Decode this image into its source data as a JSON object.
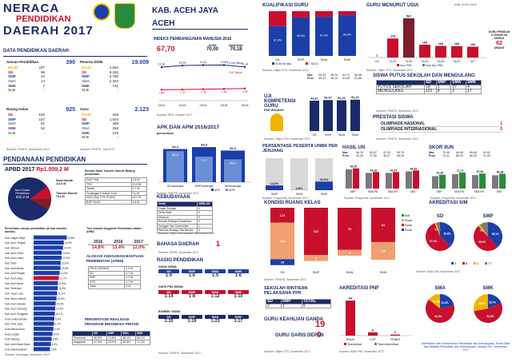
{
  "header": {
    "l1": "NERACA",
    "l2": "PENDIDIKAN",
    "l3": "DAERAH 2017",
    "region": "KAB. ACEH JAYA",
    "province": "ACEH"
  },
  "data": {
    "title": "DATA PENDIDIKAN DAERAH",
    "sp_label": "Satuan Pendidikan",
    "sp_total": "390",
    "sp_rows": [
      [
        "PAUD",
        "237"
      ],
      [
        "SD",
        "98"
      ],
      [
        "SMP",
        "34"
      ],
      [
        "SMA",
        "14"
      ],
      [
        "SMK",
        "7"
      ],
      [
        "SLB",
        "-"
      ]
    ],
    "pd_label": "Peserta Didik",
    "pd_total": "19.009",
    "pd_rows": [
      [
        "PAUD",
        "2.654"
      ],
      [
        "SD",
        "9.302"
      ],
      [
        "SMP",
        "2.786"
      ],
      [
        "SMA",
        "2.333"
      ],
      [
        "SMK",
        "731"
      ],
      [
        "SLB",
        "-"
      ]
    ],
    "rk_label": "Ruang Kelas",
    "rk_total": "925",
    "rk_rows": [
      [
        "SD",
        "615"
      ],
      [
        "SMP",
        "167"
      ],
      [
        "SMA",
        "91"
      ],
      [
        "SMK",
        "52"
      ],
      [
        "SLB",
        "-"
      ]
    ],
    "g_label": "Guru",
    "g_total": "2.123",
    "g_rows": [
      [
        "PAUD",
        "268"
      ],
      [
        "SD",
        "1.004"
      ],
      [
        "SMP",
        "459"
      ],
      [
        "SMA",
        "268"
      ],
      [
        "SMK",
        "125"
      ],
      [
        "SLB",
        "-"
      ]
    ],
    "src": "Sumber: PDSPK, Novermber 2017",
    "src2": "Sumber: PDSPK, Juni 2017"
  },
  "pendanaan": {
    "title": "PENDANAAN PENDIDIKAN",
    "apbd": "APBD 2017",
    "apbd_val": "Rp1.009,2 M",
    "pie_lbl1": "Non Urusan Pendidikan",
    "pie_val1": "822,2 M",
    "pie_lbl2": "Dana Daerah",
    "pie_val2": "111,6 M",
    "pie_lbl3": "Transfer Daerah",
    "pie_val3": "75,3 M",
    "rincian": "Rincian Dana Transfer Daerah Bidang pendidikan",
    "rincian_rows": [
      [
        "DAK Fisik",
        "4,8 M"
      ],
      [
        "TPG",
        "21,8 M"
      ],
      [
        "Tamsil",
        "1,7 M"
      ],
      [
        "Tunjangan Khusus Guru",
        "0,0 M"
      ],
      [
        "DAU (Gaji GTK PNSD)",
        "40,2 M"
      ],
      [
        "BOP PAUD",
        "3,8 M"
      ]
    ],
    "persentase_label": "Persentase urusan pendidikan (di luar transfer daerah)",
    "tren": "Tren Alokasi Anggaran Pendidikan dalam APBD",
    "tren_years": [
      "2016",
      "2016",
      "2017"
    ],
    "tren_vals": [
      "14,8%",
      "13,4%",
      "12,0%"
    ],
    "alokasi": "ALOKASI ANGGARAN BANTUAN PEMERINTAH (APBN)",
    "alokasi_rows": [
      [
        "PAUD-DIKMAS",
        "0,3 M"
      ],
      [
        "SD",
        "2,7 M"
      ],
      [
        "SMP",
        "0,3 M"
      ],
      [
        "GTK",
        "1,7 M"
      ],
      [
        "Total",
        "5 M"
      ]
    ],
    "realisasi": "PERSENTASE REALISASI PROGRAM INDONESIA PINTAR",
    "real_head": [
      "",
      "SD",
      "SMP",
      "SMA",
      "SMK"
    ],
    "real_rows": [
      [
        "Penerima",
        "46,9%",
        "21,8%",
        "48,1%",
        "64,1%"
      ],
      [
        "Anggaran",
        "47,3%",
        "23,9%",
        "49,5%",
        "71,4%"
      ]
    ],
    "kab_list": [
      "Kab. Nagan Raya",
      "Kab. Aceh Tengah",
      "Kab. Bireuen",
      "Kab. Aceh Timur",
      "Kab. Aceh Utara",
      "Kab. Pidie",
      "Kab. Aceh Besar",
      "Kab. Aceh Singkil",
      "Kab. Aceh Jaya",
      "Kab. Aceh Barat",
      "Kab. Simeulue",
      "Kab. Gayo Lues",
      "Kab. Bener Meriah",
      "Kab. Aceh Selatan",
      "Kab. Aceh Tamiang",
      "Kab. Aceh Tenggara",
      "Kota Lhokseumawe",
      "Kab. Pidie Jaya",
      "Kota Banda Aceh",
      "Kota Langsa",
      "Kota Sabang",
      "Kab. Aceh Barat Daya",
      "Kota Subulussalam"
    ],
    "kab_vals": [
      "15,8%",
      "14,4%",
      "14,0%",
      "13,4%",
      "13,3%",
      "12,9%",
      "12,8%",
      "12,4%",
      "12,0%",
      "11,6%",
      "11,5%",
      "11,2%",
      "10,9%",
      "10,5%",
      "10,3%",
      "10,1%",
      "9,9%",
      "9,7%",
      "9,4%",
      "9,0%",
      "8,6%",
      "8,2%",
      "7,8%"
    ],
    "kab_pct": [
      15.8,
      14.4,
      14.0,
      13.4,
      13.3,
      12.9,
      12.8,
      12.4,
      12.0,
      11.6,
      11.5,
      11.2,
      10.9,
      10.5,
      10.3,
      10.1,
      9.9,
      9.7,
      9.4,
      9.0,
      8.6,
      8.2,
      7.8
    ],
    "src": "Sumber: Kemdagri, November 2017"
  },
  "ipm": {
    "title": "INDEKS PEMBANGUNAN MANUSIA 2016",
    "val": "67,70",
    "aceh": "ACEH",
    "aceh_val": "70,00",
    "nas": "NASIONAL",
    "nas_val": "70,18",
    "years": [
      "2012",
      "2013",
      "2014",
      "2015",
      "2016"
    ],
    "rls": [
      "13,30",
      "13,69",
      "13,81",
      "13,82",
      "13,34"
    ],
    "hls": [
      "7,64",
      "7,70",
      "7,78",
      "7,86",
      "7,95"
    ],
    "rls_pct": [
      13.3,
      13.69,
      13.81,
      13.82,
      13.34
    ],
    "hls_pct": [
      7.64,
      7.7,
      7.78,
      7.86,
      7.95
    ],
    "lg1": "Harapan Lama Sekolah",
    "lg2": "Rerata Lama Sekolah",
    "lg_tahun": "13,3m Tahun",
    "lg_tahun2": "7,95 Tahun",
    "src": "Sumber: BPS, Oktober 2017"
  },
  "apk": {
    "title": "APK DAN APM 2016/2017",
    "sub": "(persentase)",
    "cats": [
      "SD/sederajat",
      "SMP/sederajat",
      "SM/sederajat"
    ],
    "apk": [
      "94,4",
      "99,8",
      "90,0"
    ],
    "apm": [
      "88,4",
      "72,7",
      "65,0"
    ],
    "apk_pct": [
      94.4,
      99.8,
      90.0
    ],
    "apm_pct": [
      88.4,
      72.7,
      65.0
    ],
    "lg": [
      "APK",
      "APM"
    ],
    "src": "Sumber: PDSPK, November 2017"
  },
  "kebudayaan": {
    "title": "KEBUDAYAAN",
    "rows": [
      [
        "Jenis",
        "JUMLAH"
      ],
      [
        "Cagar Budaya",
        "3"
      ],
      [
        "Desa Adat",
        "0"
      ],
      [
        "Museum",
        "0"
      ],
      [
        "Rumah Budaya Nusantara",
        "0"
      ],
      [
        "Sanggar dan Komunitas",
        "1"
      ],
      [
        "Warisan Budaya Tak Benda",
        "4"
      ]
    ],
    "src": "Sumber: Ditjen Kebudayaan, November 2017"
  },
  "bahasa": {
    "title": "BAHASA DAERAH",
    "val": "1",
    "src": "Sumber: BPPB, November 2017"
  },
  "rasio": {
    "title": "RASIO PENDIDIKAN",
    "gs": "GURU:SISWA",
    "gs_head": [
      "SD",
      "SMP",
      "SMA",
      "SMK"
    ],
    "gs_vals": [
      "1:9",
      "1:6",
      "1:9",
      "1:6"
    ],
    "ps": "GURU PNS:SISWA",
    "ps_head": [
      "SD",
      "SMP",
      "SMA",
      "SMK"
    ],
    "ps_vals": [
      "1:14",
      "1:8",
      "1:12",
      "1:10"
    ],
    "rb": "ROMBEL:SISWA",
    "rb_head": [
      "SD",
      "SMP",
      "SMA",
      "SMK"
    ],
    "rb_vals": [
      "1:15",
      "1:19",
      "1:23",
      "1:17"
    ],
    "src": "Sumber: PDSPK, November 2017"
  },
  "kualifikasi": {
    "title": "KUALIFIKASI GURU",
    "cats": [
      "SD",
      "SMP",
      "SMA",
      "SMK"
    ],
    "s1": [
      66.6,
      85.8,
      87.4,
      90.9
    ],
    "lt": [
      33.4,
      14.2,
      12.6,
      9.1
    ],
    "s1_lbl": [
      "67,0%",
      "85,9%",
      "87,5%",
      "90,9%"
    ],
    "lg": [
      "S1/D4 ke atas",
      "< S1/D4"
    ],
    "src": "Sumber: Ditjen GTK, November 2017"
  },
  "usia": {
    "title": "GURU MENURUT USIA",
    "region": "KAB. ACEH JAYA",
    "cats": [
      "<20",
      "20-29",
      "30-39",
      "40-49",
      "50-54",
      "55-59",
      "60+"
    ],
    "vals": [
      1,
      275,
      567,
      185,
      168,
      165,
      156
    ],
    "lbl": [
      "1",
      "275",
      "567",
      "185",
      "168",
      "165",
      "156"
    ],
    "lg": [
      "Guru PNS",
      "Guru Non PNS"
    ],
    "pensiun_txt": "GURU PENSIUN 5 TAHUN KE DEPAN",
    "pensiun_val": "62",
    "pensiun_unit": "ORANG",
    "src": "Sumber: Ditjen GTK, November 2017"
  },
  "uji": {
    "title": "UJI KOMPETENSI GURU",
    "sub": "PER JENJANG",
    "nas_lbl": "Nas.",
    "nas": [
      "54,33",
      "55,29",
      "61,71",
      "55,38"
    ],
    "prov_lbl": "Prov.",
    "prov": [
      "48,23",
      "48,12",
      "51,05",
      "51,86"
    ],
    "cats": [
      "SD",
      "SMP",
      "SMA",
      "SMK"
    ],
    "vals": [
      "49,61",
      "50,57",
      "50,26",
      "51,22"
    ],
    "vals_n": [
      49.61,
      50.57,
      50.26,
      51.22
    ],
    "src": "Sumber: Ditjen GTK, November 2017"
  },
  "unbk": {
    "title": "PERSENTASE PESERTA UNBK PER JENJANG",
    "cats": [
      "SMP",
      "SMA",
      "SMK"
    ],
    "vals": [
      14.8,
      0.5,
      26.9
    ],
    "lbl": [
      "14,8%",
      "0,5%",
      "26,9%"
    ],
    "src": "Sumber: Puspendik, November 2017"
  },
  "hasil": {
    "title": "HASIL UN",
    "nas_lbl": "Nas.",
    "nas": [
      "54,29",
      "52,67",
      "47,93",
      "53,75"
    ],
    "prov_lbl": "Prov.",
    "prov": [
      "42,26",
      "37,36",
      "36,07",
      "45,43"
    ],
    "cats": [
      "SMP",
      "SMA IPA",
      "SMA IPS",
      "SMK"
    ],
    "vals": [
      "54,20",
      "44,33",
      "44,27",
      "48,63"
    ],
    "vals_n": [
      54.2,
      44.33,
      44.27,
      48.63
    ],
    "lg": [
      "2016",
      "2017"
    ],
    "src": "Sumber: Puspendik, November 2017"
  },
  "skor": {
    "title": "SKOR IIUN",
    "nas_lbl": "Nas.",
    "nas": [
      "70,45",
      "66,69",
      "65,65",
      "62,61"
    ],
    "prov_lbl": "Prov.",
    "prov": [
      "79,31",
      "85,33",
      "80,00",
      "91,53"
    ],
    "cats": [
      "SMP",
      "SMA IPA",
      "SMA IPS",
      "SMK"
    ],
    "vals": [
      61.9,
      71.8,
      67.1,
      66.0
    ],
    "lbl": [
      "61,90",
      "71,77",
      "67,06",
      "65,96"
    ],
    "lg": [
      "2016",
      "2017"
    ],
    "src": "Sumber: Puspendik, November 2017"
  },
  "putus": {
    "title": "SISWA PUTUS SEKOLAH DAN MENGULANG",
    "head": [
      "SD",
      "SMP",
      "SMA",
      "SMK"
    ],
    "rows": [
      [
        "PUTUS SEKOLAH",
        "18",
        "1",
        "27",
        "4"
      ],
      [
        "MENGULANG",
        "119",
        "8",
        "2",
        "17"
      ]
    ],
    "src": "Sumber: PDSPK, November 2017"
  },
  "prestasi": {
    "title": "PRESTASI SISWA",
    "rows": [
      [
        "OLIMPIADE NASIONAL",
        "1"
      ],
      [
        "OLIMPIADE INTERNASIONAL",
        "0"
      ]
    ],
    "src": "Sumber: PDSPK, November 2017"
  },
  "kondisi": {
    "title": "KONDISI RUANG KELAS",
    "cats": [
      "SD",
      "SMP",
      "SMA",
      "SMK"
    ],
    "lg": [
      "Baik",
      "Rusak Ringan",
      "Rusak Sedang",
      "Rusak Berat"
    ],
    "stacks": [
      [
        [
          "173",
          25
        ],
        [
          "412",
          62
        ],
        [
          "19",
          10
        ]
      ],
      [
        [
          "137",
          80
        ],
        [
          "8",
          10
        ]
      ],
      [
        [
          "76",
          71
        ],
        [
          "5",
          10
        ]
      ],
      [
        [
          "31",
          58
        ],
        [
          "19",
          30
        ]
      ]
    ],
    "src": "Sumber: PDSPK, November 2017"
  },
  "akreditasi": {
    "title": "AKREDITASI S/M",
    "pies": [
      "SD",
      "SMP",
      "SMA",
      "SMK"
    ],
    "lg": [
      "A",
      "B",
      "C",
      "TT"
    ],
    "src": "Sumber: BAN S/M, November 2017",
    "vals": {
      "SD": [
        "36,8%",
        "57,1%",
        "2,1%"
      ],
      "SMP": [
        "38,1%",
        "50,0%",
        "2,6%"
      ],
      "SMA": [
        "21,4%",
        "64,3%",
        "14,3%"
      ],
      "SMK": [
        "18,7%",
        "53,3%",
        "28,0%"
      ]
    }
  },
  "rintisan": {
    "title": "SEKOLAH RINTISAN PELAKSANA PPK",
    "head": [
      "SD",
      "SMP",
      "TOTAL"
    ],
    "vals": [
      "2",
      "3",
      "5"
    ],
    "src": "Sumber: Ditjen Kebudayaan, November 2017"
  },
  "keahlian": {
    "title": "GURU KEAHLIAN GANDA",
    "val": "19"
  },
  "garis": {
    "title": "GURU GARIS DEPAN",
    "val": "0",
    "src": "Sumber: Ditjen GTK, November 2017"
  },
  "pnf": {
    "title": "AKREDITASI PNF",
    "cats": [
      "PAUD",
      "LKP",
      "PKBM"
    ],
    "vals": [
      64,
      6,
      2
    ],
    "lbl": [
      "64",
      "6",
      "2"
    ],
    "lg": [
      "Terakreditasi",
      "Tidak terakreditasi"
    ],
    "src": "Sumber: BAN-PNF, November 2017"
  },
  "footer": "Diterbitkan oleh Kementerian Pendidikan dan Kebudayaan, Pusat Data dan Statistik Pendidikan dan Kebudayaan, Jakarta 2017 Desember 2017"
}
